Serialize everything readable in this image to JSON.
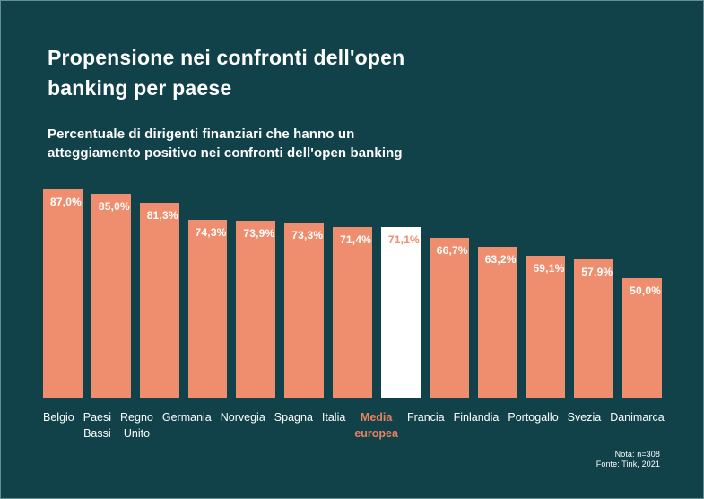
{
  "title": "Propensione nei confronti dell'open banking per paese",
  "subtitle": "Percentuale di dirigenti finanziari che hanno un atteggiamento positivo nei confronti dell'open banking",
  "note": {
    "line1": "Nota: n=308",
    "line2": "Fonte: Tink, 2021"
  },
  "colors": {
    "background": "#11424A",
    "bar": "#EF8E6E",
    "highlight_bar": "#FFFFFF",
    "text": "#FFFFFF",
    "highlight_text": "#E8815D"
  },
  "chart_data": {
    "type": "bar",
    "title": "Propensione nei confronti dell'open banking per paese",
    "subtitle": "Percentuale di dirigenti finanziari che hanno un atteggiamento positivo nei confronti dell'open banking",
    "categories": [
      "Belgio",
      "Paesi Bassi",
      "Regno Unito",
      "Germania",
      "Norvegia",
      "Spagna",
      "Italia",
      "Media europea",
      "Francia",
      "Finlandia",
      "Portogallo",
      "Svezia",
      "Danimarca"
    ],
    "category_label_lines": [
      [
        "Belgio"
      ],
      [
        "Paesi",
        "Bassi"
      ],
      [
        "Regno",
        "Unito"
      ],
      [
        "Germania"
      ],
      [
        "Norvegia"
      ],
      [
        "Spagna"
      ],
      [
        "Italia"
      ],
      [
        "Media",
        "europea"
      ],
      [
        "Francia"
      ],
      [
        "Finlandia"
      ],
      [
        "Portogallo"
      ],
      [
        "Svezia"
      ],
      [
        "Danimarca"
      ]
    ],
    "values": [
      87.0,
      85.0,
      81.3,
      74.3,
      73.9,
      73.3,
      71.4,
      71.1,
      66.7,
      63.2,
      59.1,
      57.9,
      50.0
    ],
    "value_labels": [
      "87,0%",
      "85,0%",
      "81,3%",
      "74,3%",
      "73,9%",
      "73,3%",
      "71,4%",
      "71,1%",
      "66,7%",
      "63,2%",
      "59,1%",
      "57,9%",
      "50,0%"
    ],
    "highlight_index": 7,
    "xlabel": "",
    "ylabel": "",
    "ylim": [
      0,
      100
    ],
    "grid": false,
    "legend": false,
    "value_labels_position": "inside-top-left",
    "highlight_meaning": "Media europea (European average) shown as white bar with orange labels"
  }
}
